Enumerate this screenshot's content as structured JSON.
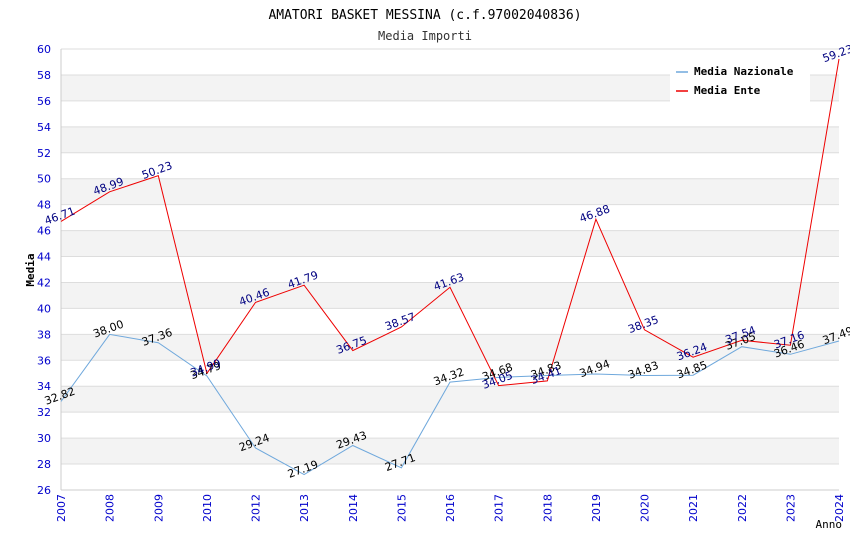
{
  "chart_data": {
    "type": "line",
    "title": "AMATORI BASKET MESSINA (c.f.97002040836)",
    "subtitle": "Media Importi",
    "xlabel": "Anno",
    "ylabel": "Media",
    "ylim": [
      26,
      60
    ],
    "ytick_step": 2,
    "grid": true,
    "legend_position": "top-right",
    "categories": [
      "2007",
      "2008",
      "2009",
      "2010",
      "2012",
      "2013",
      "2014",
      "2015",
      "2016",
      "2017",
      "2018",
      "2019",
      "2020",
      "2021",
      "2022",
      "2023",
      "2024"
    ],
    "series": [
      {
        "name": "Media Nazionale",
        "color": "#6fa8dc",
        "label_color": "#000000",
        "values": [
          32.82,
          38.0,
          37.36,
          34.79,
          29.24,
          27.19,
          29.43,
          27.71,
          34.32,
          34.68,
          34.83,
          34.94,
          34.83,
          34.85,
          37.05,
          36.46,
          37.49
        ]
      },
      {
        "name": "Media Ente",
        "color": "#ee0000",
        "label_color": "#000080",
        "values": [
          46.71,
          48.99,
          50.23,
          34.99,
          40.46,
          41.79,
          36.75,
          38.57,
          41.63,
          34.05,
          34.41,
          46.88,
          38.35,
          36.24,
          37.54,
          37.16,
          59.23
        ]
      }
    ],
    "colors": {
      "axis_tick_text": "#0000cc",
      "band_fill": "#f3f3f3",
      "grid_line": "#dddddd",
      "title_text": "#000000",
      "subtitle_text": "#333333"
    }
  }
}
